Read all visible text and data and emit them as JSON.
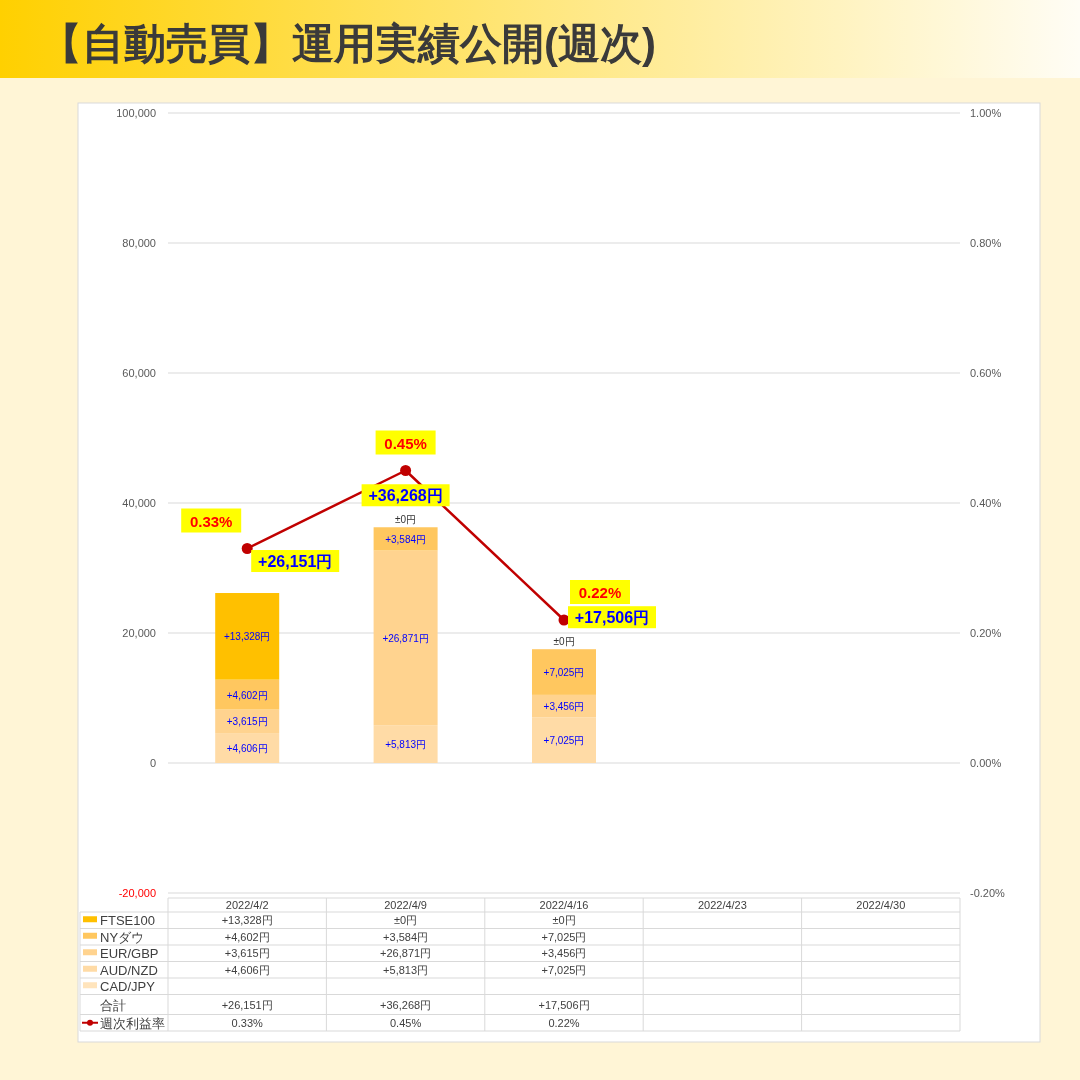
{
  "chart_data": {
    "type": "bar",
    "title": "【自動売買】運用実績公開(週次)",
    "categories": [
      "2022/4/2",
      "2022/4/9",
      "2022/4/16",
      "2022/4/23",
      "2022/4/30"
    ],
    "stacked": true,
    "grid": "y",
    "legend": "bottom",
    "marker": "circle",
    "series": [
      {
        "name": "CAD/JPY",
        "color": "#ffe4bc",
        "values": [
          null,
          null,
          null,
          null,
          null
        ],
        "value_labels": [
          null,
          null,
          null,
          null,
          null
        ]
      },
      {
        "name": "AUD/NZD",
        "color": "#ffdba6",
        "values": [
          4606,
          5813,
          7025,
          null,
          null
        ],
        "value_labels": [
          "+4,606円",
          "+5,813円",
          "+7,025円",
          null,
          null
        ]
      },
      {
        "name": "EUR/GBP",
        "color": "#ffd38f",
        "values": [
          3615,
          26871,
          3456,
          null,
          null
        ],
        "value_labels": [
          "+3,615円",
          "+26,871円",
          "+3,456円",
          null,
          null
        ]
      },
      {
        "name": "NYダウ",
        "color": "#ffc75f",
        "values": [
          4602,
          3584,
          7025,
          null,
          null
        ],
        "value_labels": [
          "+4,602円",
          "+3,584円",
          "+7,025円",
          null,
          null
        ]
      },
      {
        "name": "FTSE100",
        "color": "#ffc000",
        "values": [
          13328,
          0,
          0,
          null,
          null
        ],
        "value_labels": [
          "+13,328円",
          "±0円",
          "±0円",
          null,
          null
        ]
      },
      {
        "name": "週次利益率",
        "type": "line",
        "axis": "y2",
        "color": "#c00000",
        "values": [
          0.33,
          0.45,
          0.22,
          null,
          null
        ],
        "value_labels": [
          "0.33%",
          "0.45%",
          "0.22%",
          null,
          null
        ]
      }
    ],
    "totals": [
      "+26,151円",
      "+36,268円",
      "+17,506円",
      null,
      null
    ],
    "ylim": [
      -20000,
      100000
    ],
    "yticks": [
      {
        "value": -20000,
        "label": "-20,000"
      },
      0,
      {
        "value": 20000,
        "label": "20,000"
      },
      {
        "value": 40000,
        "label": "40,000"
      },
      {
        "value": 60000,
        "label": "60,000"
      },
      {
        "value": 80000,
        "label": "80,000"
      },
      {
        "value": 100000,
        "label": "100,000"
      }
    ],
    "y2lim": [
      -0.2,
      1.0
    ],
    "y2ticks": [
      {
        "value": -0.2,
        "label": "-0.20%"
      },
      {
        "value": 0,
        "label": "0.00%"
      },
      {
        "value": 0.2,
        "label": "0.20%"
      },
      {
        "value": 0.4,
        "label": "0.40%"
      },
      {
        "value": 0.6,
        "label": "0.60%"
      },
      {
        "value": 0.8,
        "label": "0.80%"
      },
      {
        "value": 1.0,
        "label": "1.00%"
      }
    ],
    "annotations": [
      "合計"
    ]
  }
}
